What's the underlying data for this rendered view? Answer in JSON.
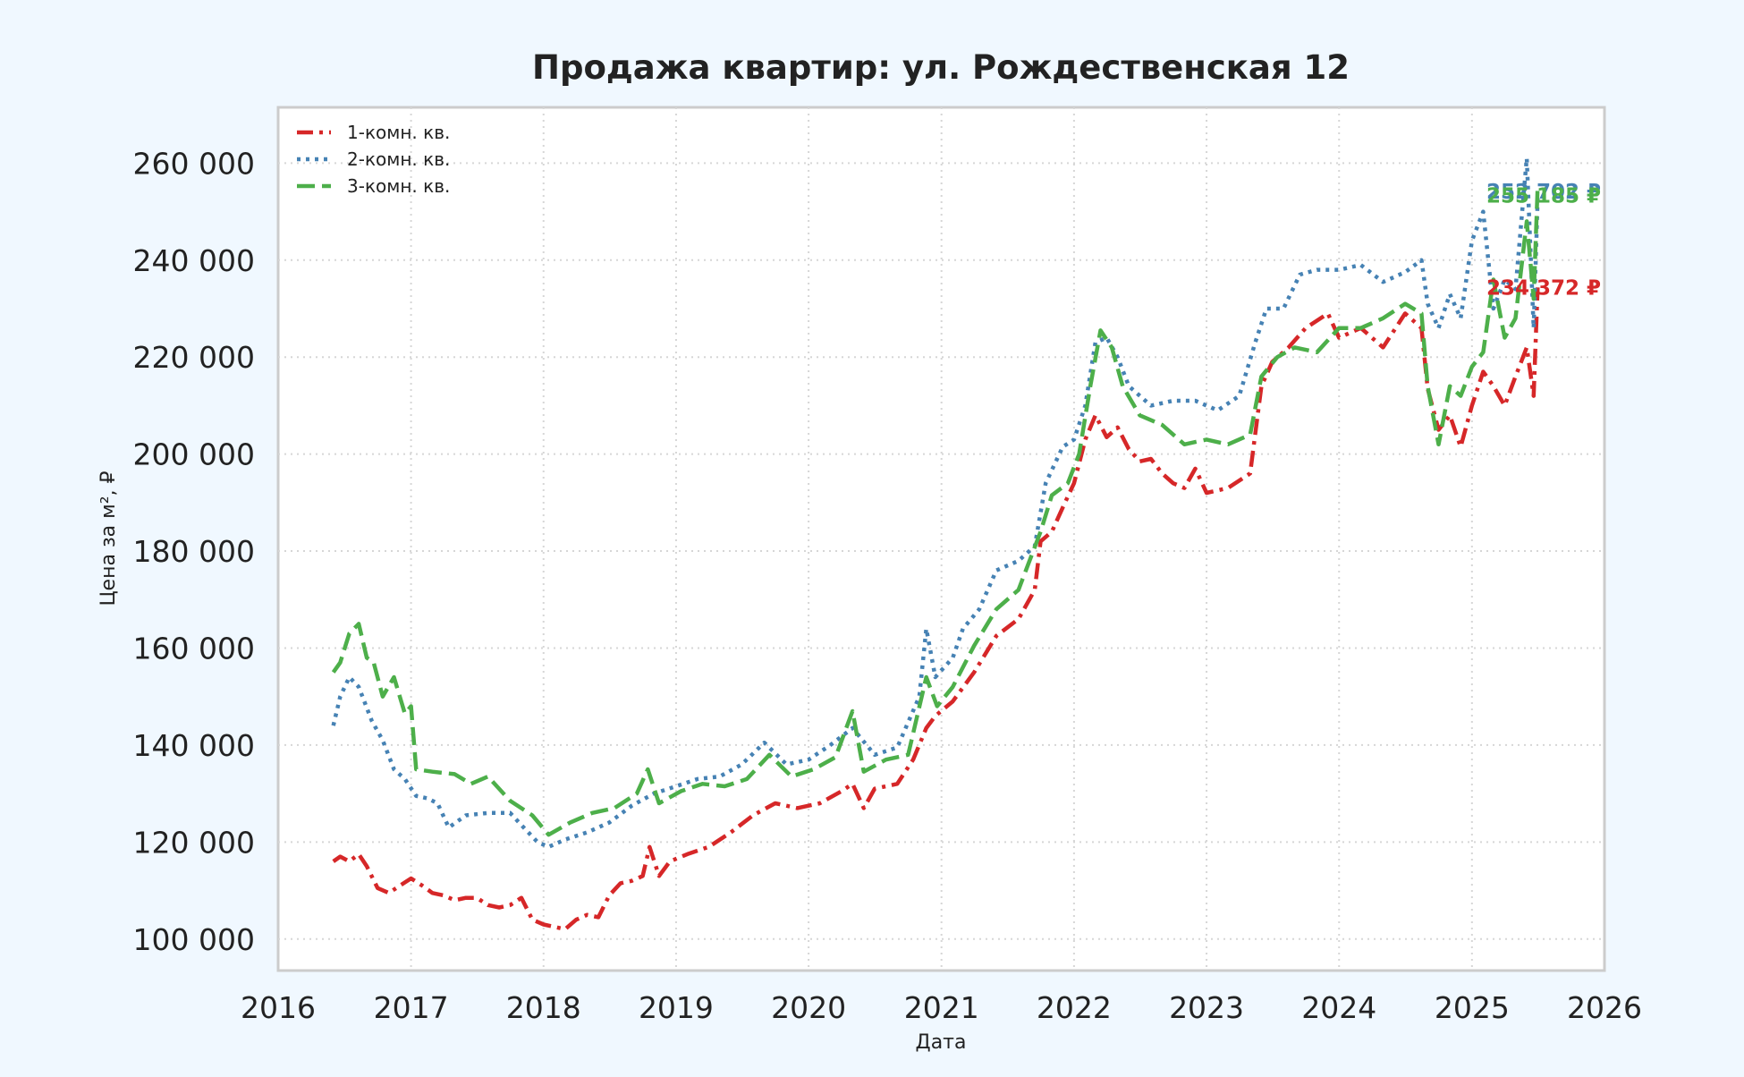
{
  "chart_data": {
    "type": "line",
    "title": "Продажа квартир: ул. Рождественская 12",
    "xlabel": "Дата",
    "ylabel": "Цена за м², ₽",
    "xlim": [
      "2016-01-01",
      "2026-01-01"
    ],
    "ylim": [
      93500,
      271500
    ],
    "x_ticks": [
      {
        "value": "2016-01-01",
        "label": "2016"
      },
      {
        "value": "2017-01-01",
        "label": "2017"
      },
      {
        "value": "2018-01-01",
        "label": "2018"
      },
      {
        "value": "2019-01-01",
        "label": "2019"
      },
      {
        "value": "2020-01-01",
        "label": "2020"
      },
      {
        "value": "2021-01-01",
        "label": "2021"
      },
      {
        "value": "2022-01-01",
        "label": "2022"
      },
      {
        "value": "2023-01-01",
        "label": "2023"
      },
      {
        "value": "2024-01-01",
        "label": "2024"
      },
      {
        "value": "2025-01-01",
        "label": "2025"
      },
      {
        "value": "2026-01-01",
        "label": "2026"
      }
    ],
    "y_ticks": [
      {
        "value": 100000,
        "label": "100 000"
      },
      {
        "value": 120000,
        "label": "120 000"
      },
      {
        "value": 140000,
        "label": "140 000"
      },
      {
        "value": 160000,
        "label": "160 000"
      },
      {
        "value": 180000,
        "label": "180 000"
      },
      {
        "value": 200000,
        "label": "200 000"
      },
      {
        "value": 220000,
        "label": "220 000"
      },
      {
        "value": 240000,
        "label": "240 000"
      },
      {
        "value": 260000,
        "label": "260 000"
      }
    ],
    "grid": true,
    "legend_position": "top-left",
    "series": [
      {
        "name": "1-комн. кв.",
        "color": "#d62728",
        "dash": "dashdot",
        "end_label": "234 372 ₽",
        "points": [
          [
            "2016-06-01",
            116000
          ],
          [
            "2016-06-20",
            117000
          ],
          [
            "2016-07-15",
            116000
          ],
          [
            "2016-08-10",
            117500
          ],
          [
            "2016-09-01",
            115000
          ],
          [
            "2016-10-01",
            110500
          ],
          [
            "2016-11-01",
            109500
          ],
          [
            "2016-12-01",
            111000
          ],
          [
            "2017-01-01",
            112500
          ],
          [
            "2017-02-01",
            111000
          ],
          [
            "2017-03-01",
            109500
          ],
          [
            "2017-04-01",
            109000
          ],
          [
            "2017-05-01",
            108000
          ],
          [
            "2017-06-01",
            108500
          ],
          [
            "2017-07-01",
            108500
          ],
          [
            "2017-08-01",
            107000
          ],
          [
            "2017-09-01",
            106500
          ],
          [
            "2017-10-01",
            107000
          ],
          [
            "2017-11-01",
            108500
          ],
          [
            "2017-12-01",
            104000
          ],
          [
            "2018-01-01",
            103000
          ],
          [
            "2018-02-01",
            102500
          ],
          [
            "2018-03-01",
            102000
          ],
          [
            "2018-04-01",
            104000
          ],
          [
            "2018-05-01",
            105000
          ],
          [
            "2018-06-01",
            104500
          ],
          [
            "2018-07-01",
            109000
          ],
          [
            "2018-08-01",
            111500
          ],
          [
            "2018-09-01",
            112000
          ],
          [
            "2018-10-01",
            113000
          ],
          [
            "2018-10-20",
            119000
          ],
          [
            "2018-11-15",
            113000
          ],
          [
            "2018-12-15",
            116000
          ],
          [
            "2019-02-01",
            117500
          ],
          [
            "2019-04-01",
            119000
          ],
          [
            "2019-06-01",
            122000
          ],
          [
            "2019-08-01",
            125500
          ],
          [
            "2019-10-01",
            128000
          ],
          [
            "2019-12-01",
            127000
          ],
          [
            "2020-02-01",
            128000
          ],
          [
            "2020-04-01",
            130500
          ],
          [
            "2020-05-01",
            132000
          ],
          [
            "2020-06-01",
            127000
          ],
          [
            "2020-07-01",
            131000
          ],
          [
            "2020-09-01",
            132000
          ],
          [
            "2020-10-15",
            137000
          ],
          [
            "2020-11-20",
            143500
          ],
          [
            "2020-12-15",
            146000
          ],
          [
            "2021-02-01",
            149000
          ],
          [
            "2021-04-01",
            155000
          ],
          [
            "2021-06-01",
            162500
          ],
          [
            "2021-08-01",
            166000
          ],
          [
            "2021-09-15",
            172000
          ],
          [
            "2021-10-01",
            182000
          ],
          [
            "2021-11-01",
            184000
          ],
          [
            "2021-12-01",
            189000
          ],
          [
            "2022-01-01",
            194000
          ],
          [
            "2022-02-01",
            203000
          ],
          [
            "2022-03-01",
            208000
          ],
          [
            "2022-04-01",
            203500
          ],
          [
            "2022-05-01",
            205500
          ],
          [
            "2022-06-01",
            201000
          ],
          [
            "2022-07-01",
            198500
          ],
          [
            "2022-08-01",
            199000
          ],
          [
            "2022-09-01",
            196000
          ],
          [
            "2022-10-01",
            194000
          ],
          [
            "2022-11-01",
            193000
          ],
          [
            "2022-12-01",
            197000
          ],
          [
            "2023-01-01",
            192000
          ],
          [
            "2023-03-01",
            193000
          ],
          [
            "2023-05-01",
            196000
          ],
          [
            "2023-06-01",
            214000
          ],
          [
            "2023-07-01",
            219000
          ],
          [
            "2023-08-15",
            222000
          ],
          [
            "2023-10-01",
            226000
          ],
          [
            "2023-12-01",
            229000
          ],
          [
            "2024-01-01",
            224000
          ],
          [
            "2024-03-01",
            226000
          ],
          [
            "2024-05-01",
            222000
          ],
          [
            "2024-07-01",
            229000
          ],
          [
            "2024-08-15",
            226000
          ],
          [
            "2024-09-01",
            213500
          ],
          [
            "2024-10-01",
            205000
          ],
          [
            "2024-11-01",
            208000
          ],
          [
            "2024-12-01",
            201500
          ],
          [
            "2025-01-01",
            210000
          ],
          [
            "2025-02-01",
            217000
          ],
          [
            "2025-03-01",
            214000
          ],
          [
            "2025-04-01",
            210000
          ],
          [
            "2025-05-01",
            216000
          ],
          [
            "2025-06-01",
            222000
          ],
          [
            "2025-06-20",
            212000
          ],
          [
            "2025-07-01",
            234372
          ]
        ]
      },
      {
        "name": "2-комн. кв.",
        "color": "#4682b4",
        "dash": "dotted",
        "end_label": "252 702 ₽",
        "points": [
          [
            "2016-06-01",
            144000
          ],
          [
            "2016-06-20",
            150000
          ],
          [
            "2016-07-15",
            154000
          ],
          [
            "2016-08-10",
            152000
          ],
          [
            "2016-09-15",
            145000
          ],
          [
            "2016-10-15",
            141000
          ],
          [
            "2016-11-15",
            135000
          ],
          [
            "2016-12-15",
            133000
          ],
          [
            "2017-01-15",
            129500
          ],
          [
            "2017-02-15",
            129000
          ],
          [
            "2017-03-15",
            128000
          ],
          [
            "2017-04-15",
            123000
          ],
          [
            "2017-06-01",
            125500
          ],
          [
            "2017-08-01",
            126000
          ],
          [
            "2017-10-01",
            126000
          ],
          [
            "2017-11-01",
            123500
          ],
          [
            "2017-12-15",
            120000
          ],
          [
            "2018-01-15",
            119000
          ],
          [
            "2018-03-01",
            120500
          ],
          [
            "2018-05-01",
            122000
          ],
          [
            "2018-07-01",
            124000
          ],
          [
            "2018-09-01",
            127500
          ],
          [
            "2018-11-01",
            130000
          ],
          [
            "2019-01-01",
            131500
          ],
          [
            "2019-03-01",
            133000
          ],
          [
            "2019-05-01",
            133500
          ],
          [
            "2019-07-01",
            136000
          ],
          [
            "2019-09-01",
            140500
          ],
          [
            "2019-11-01",
            136000
          ],
          [
            "2020-01-01",
            137000
          ],
          [
            "2020-03-01",
            140000
          ],
          [
            "2020-05-01",
            143500
          ],
          [
            "2020-07-01",
            138000
          ],
          [
            "2020-09-01",
            139500
          ],
          [
            "2020-11-01",
            150000
          ],
          [
            "2020-11-20",
            164000
          ],
          [
            "2020-12-15",
            154000
          ],
          [
            "2021-02-01",
            158000
          ],
          [
            "2021-03-01",
            164000
          ],
          [
            "2021-04-15",
            168000
          ],
          [
            "2021-06-01",
            176000
          ],
          [
            "2021-08-01",
            178000
          ],
          [
            "2021-09-15",
            181000
          ],
          [
            "2021-10-15",
            194000
          ],
          [
            "2021-12-01",
            201500
          ],
          [
            "2022-01-01",
            203000
          ],
          [
            "2022-02-01",
            210000
          ],
          [
            "2022-03-01",
            223000
          ],
          [
            "2022-04-01",
            224000
          ],
          [
            "2022-05-01",
            220000
          ],
          [
            "2022-06-01",
            214000
          ],
          [
            "2022-08-01",
            210000
          ],
          [
            "2022-10-01",
            211000
          ],
          [
            "2022-12-01",
            211000
          ],
          [
            "2023-02-01",
            209000
          ],
          [
            "2023-04-01",
            212000
          ],
          [
            "2023-05-15",
            223000
          ],
          [
            "2023-06-15",
            230000
          ],
          [
            "2023-08-01",
            230000
          ],
          [
            "2023-09-15",
            237000
          ],
          [
            "2023-11-01",
            238000
          ],
          [
            "2024-01-01",
            238000
          ],
          [
            "2024-03-01",
            239000
          ],
          [
            "2024-05-01",
            235500
          ],
          [
            "2024-07-01",
            237500
          ],
          [
            "2024-08-15",
            240000
          ],
          [
            "2024-09-01",
            231000
          ],
          [
            "2024-10-01",
            226000
          ],
          [
            "2024-11-01",
            233000
          ],
          [
            "2024-12-01",
            228000
          ],
          [
            "2025-01-01",
            244000
          ],
          [
            "2025-02-01",
            250000
          ],
          [
            "2025-03-01",
            230000
          ],
          [
            "2025-04-01",
            236000
          ],
          [
            "2025-05-01",
            234000
          ],
          [
            "2025-06-01",
            261000
          ],
          [
            "2025-06-20",
            226000
          ],
          [
            "2025-07-01",
            252702
          ]
        ]
      },
      {
        "name": "3-комн. кв.",
        "color": "#4daf4a",
        "dash": "dashed",
        "end_label": "255 185 ₽",
        "points": [
          [
            "2016-06-01",
            155000
          ],
          [
            "2016-06-20",
            157000
          ],
          [
            "2016-07-15",
            163000
          ],
          [
            "2016-08-10",
            165000
          ],
          [
            "2016-09-01",
            158000
          ],
          [
            "2016-09-20",
            157000
          ],
          [
            "2016-10-15",
            150000
          ],
          [
            "2016-11-15",
            154000
          ],
          [
            "2016-12-15",
            146500
          ],
          [
            "2017-01-01",
            148000
          ],
          [
            "2017-01-15",
            135000
          ],
          [
            "2017-03-01",
            134500
          ],
          [
            "2017-05-01",
            134000
          ],
          [
            "2017-06-15",
            132000
          ],
          [
            "2017-08-01",
            133500
          ],
          [
            "2017-10-01",
            128500
          ],
          [
            "2017-12-01",
            125500
          ],
          [
            "2018-01-15",
            121500
          ],
          [
            "2018-03-15",
            124000
          ],
          [
            "2018-05-15",
            126000
          ],
          [
            "2018-07-15",
            127000
          ],
          [
            "2018-09-15",
            130000
          ],
          [
            "2018-10-15",
            135000
          ],
          [
            "2018-11-15",
            128000
          ],
          [
            "2019-01-15",
            130500
          ],
          [
            "2019-03-15",
            132000
          ],
          [
            "2019-05-15",
            131500
          ],
          [
            "2019-07-15",
            133000
          ],
          [
            "2019-09-15",
            138000
          ],
          [
            "2019-11-15",
            133500
          ],
          [
            "2020-01-15",
            135000
          ],
          [
            "2020-03-15",
            137500
          ],
          [
            "2020-05-01",
            147000
          ],
          [
            "2020-06-01",
            134500
          ],
          [
            "2020-08-01",
            137000
          ],
          [
            "2020-10-01",
            138000
          ],
          [
            "2020-11-20",
            154000
          ],
          [
            "2020-12-20",
            148000
          ],
          [
            "2021-02-01",
            152000
          ],
          [
            "2021-04-01",
            160500
          ],
          [
            "2021-06-01",
            168000
          ],
          [
            "2021-08-01",
            172000
          ],
          [
            "2021-10-01",
            184000
          ],
          [
            "2021-11-01",
            191500
          ],
          [
            "2021-12-15",
            194000
          ],
          [
            "2022-01-15",
            200000
          ],
          [
            "2022-02-15",
            214000
          ],
          [
            "2022-03-15",
            225500
          ],
          [
            "2022-04-15",
            222000
          ],
          [
            "2022-05-15",
            214000
          ],
          [
            "2022-07-01",
            208000
          ],
          [
            "2022-09-01",
            206000
          ],
          [
            "2022-11-01",
            202000
          ],
          [
            "2023-01-01",
            203000
          ],
          [
            "2023-03-01",
            202000
          ],
          [
            "2023-05-01",
            204000
          ],
          [
            "2023-06-01",
            216000
          ],
          [
            "2023-07-15",
            220000
          ],
          [
            "2023-09-01",
            222000
          ],
          [
            "2023-11-01",
            221000
          ],
          [
            "2024-01-01",
            226000
          ],
          [
            "2024-03-01",
            226000
          ],
          [
            "2024-05-01",
            228000
          ],
          [
            "2024-07-01",
            231000
          ],
          [
            "2024-08-15",
            229000
          ],
          [
            "2024-09-01",
            214000
          ],
          [
            "2024-10-01",
            202000
          ],
          [
            "2024-11-01",
            214000
          ],
          [
            "2024-12-01",
            212000
          ],
          [
            "2025-01-01",
            218000
          ],
          [
            "2025-02-01",
            221000
          ],
          [
            "2025-03-01",
            236000
          ],
          [
            "2025-04-01",
            224000
          ],
          [
            "2025-05-01",
            228000
          ],
          [
            "2025-06-01",
            248000
          ],
          [
            "2025-06-20",
            232000
          ],
          [
            "2025-07-01",
            255185
          ]
        ]
      }
    ]
  }
}
